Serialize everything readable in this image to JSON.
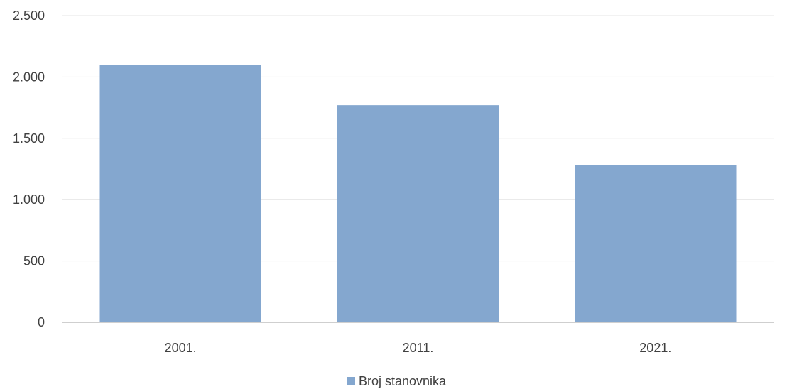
{
  "chart_data": {
    "type": "bar",
    "categories": [
      "2001.",
      "2011.",
      "2021."
    ],
    "series": [
      {
        "name": "Broj stanovnika",
        "values": [
          2095,
          1770,
          1280
        ],
        "color": "#84a7cf"
      }
    ],
    "ylim": [
      0,
      2500
    ],
    "yticks": [
      0,
      500,
      1000,
      1500,
      2000,
      2500
    ],
    "ytick_labels": [
      "0",
      "500",
      "1.000",
      "1.500",
      "2.000",
      "2.500"
    ],
    "grid": true,
    "legend_position": "bottom-center",
    "title": "",
    "xlabel": "",
    "ylabel": ""
  }
}
